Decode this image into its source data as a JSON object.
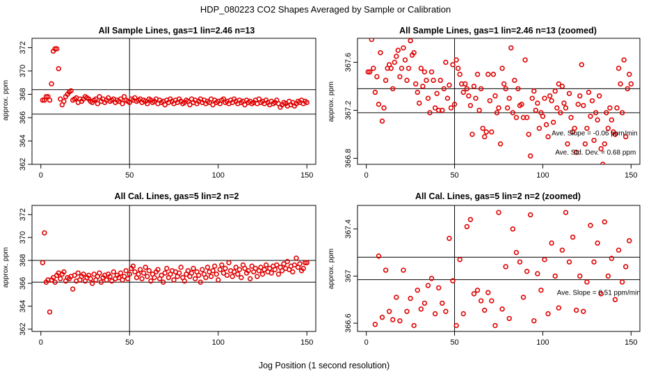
{
  "figure": {
    "title": "HDP_080223  CO2 Shapes Averaged by Sample or Calibration",
    "xlabel": "Jog Position (1 second resolution)"
  },
  "colors": {
    "points": "#e00000",
    "lines": "#000000"
  },
  "chart_data": [
    {
      "type": "scatter",
      "title": "All Sample Lines, gas=1 lin=2.46 n=13",
      "ylabel": "approx. ppm",
      "xlim": [
        -5,
        155
      ],
      "ylim": [
        362,
        372.8
      ],
      "xticks": [
        0,
        50,
        100,
        150
      ],
      "yticks": [
        362,
        364,
        366,
        368,
        370,
        372
      ],
      "vline": 50,
      "hlines": [
        366.3,
        368.4
      ],
      "annotations": [],
      "series": {
        "name": "sample lines",
        "x": [
          1,
          2,
          3,
          4,
          5,
          6,
          7,
          8,
          9,
          10,
          11,
          12,
          13,
          14,
          15,
          16,
          17,
          18,
          19,
          20,
          21,
          22,
          23,
          24,
          25,
          26,
          27,
          28,
          29,
          30,
          31,
          32,
          33,
          34,
          35,
          36,
          37,
          38,
          39,
          40,
          41,
          42,
          43,
          44,
          45,
          46,
          47,
          48,
          49,
          50,
          51,
          52,
          53,
          54,
          55,
          56,
          57,
          58,
          59,
          60,
          61,
          62,
          63,
          64,
          65,
          66,
          67,
          68,
          69,
          70,
          71,
          72,
          73,
          74,
          75,
          76,
          77,
          78,
          79,
          80,
          81,
          82,
          83,
          84,
          85,
          86,
          87,
          88,
          89,
          90,
          91,
          92,
          93,
          94,
          95,
          96,
          97,
          98,
          99,
          100,
          101,
          102,
          103,
          104,
          105,
          106,
          107,
          108,
          109,
          110,
          111,
          112,
          113,
          114,
          115,
          116,
          117,
          118,
          119,
          120,
          121,
          122,
          123,
          124,
          125,
          126,
          127,
          128,
          129,
          130,
          131,
          132,
          133,
          134,
          135,
          136,
          137,
          138,
          139,
          140,
          141,
          142,
          143,
          144,
          145,
          146,
          147,
          148,
          149,
          150
        ],
        "y": [
          367.5,
          367.5,
          367.8,
          367.8,
          367.5,
          368.9,
          371.7,
          371.9,
          371.9,
          370.2,
          367.6,
          367.1,
          367.4,
          367.8,
          368.0,
          368.2,
          368.3,
          367.5,
          367.6,
          367.7,
          367.3,
          367.6,
          367.4,
          367.6,
          367.8,
          367.7,
          367.6,
          367.4,
          367.3,
          367.5,
          367.6,
          367.2,
          367.8,
          367.4,
          367.6,
          367.3,
          367.5,
          367.7,
          367.4,
          367.5,
          367.6,
          367.3,
          367.5,
          367.4,
          367.6,
          367.2,
          367.8,
          367.5,
          367.4,
          367.3,
          367.6,
          367.5,
          367.7,
          367.4,
          367.5,
          367.6,
          367.3,
          367.5,
          367.4,
          367.2,
          367.6,
          367.5,
          367.3,
          367.4,
          367.6,
          367.2,
          367.5,
          367.3,
          367.4,
          367.1,
          367.5,
          367.3,
          367.6,
          367.4,
          367.2,
          367.5,
          367.3,
          367.6,
          367.4,
          367.2,
          367.3,
          367.5,
          367.4,
          367.1,
          367.6,
          367.3,
          367.5,
          367.2,
          367.4,
          367.6,
          367.3,
          367.5,
          367.2,
          367.4,
          367.3,
          367.6,
          367.1,
          367.5,
          367.3,
          367.4,
          367.2,
          367.5,
          367.6,
          367.3,
          367.4,
          367.2,
          367.5,
          367.3,
          367.6,
          367.4,
          367.2,
          367.5,
          367.3,
          367.4,
          367.1,
          367.5,
          367.3,
          367.4,
          367.2,
          367.3,
          367.5,
          367.2,
          367.6,
          367.3,
          367.4,
          367.2,
          367.5,
          367.3,
          367.1,
          367.4,
          367.2,
          367.3,
          367.5,
          367.2,
          366.9,
          367.1,
          367.3,
          367.2,
          367.0,
          367.4,
          367.1,
          367.3,
          367.0,
          367.2,
          367.4,
          367.3,
          367.5,
          367.2,
          367.4,
          367.3
        ]
      }
    },
    {
      "type": "scatter",
      "title": "All Sample Lines, gas=1 lin=2.46 n=13 (zoomed)",
      "ylabel": "approx. ppm",
      "xlim": [
        -5,
        155
      ],
      "ylim": [
        366.75,
        367.8
      ],
      "xticks": [
        0,
        50,
        100,
        150
      ],
      "yticks": [
        366.8,
        367.2,
        367.6
      ],
      "vline": 50,
      "hlines": [
        367.18,
        367.38
      ],
      "annotations": [
        "Ave. Slope =  -0.06  ppm/min",
        "Ave. Std. Dev. =  0.68  ppm"
      ],
      "series": {
        "name": "sample lines zoomed",
        "x": [
          1,
          2,
          3,
          4,
          5,
          6,
          7,
          8,
          9,
          10,
          11,
          12,
          13,
          14,
          15,
          16,
          17,
          18,
          19,
          20,
          21,
          22,
          23,
          24,
          25,
          26,
          27,
          28,
          29,
          30,
          31,
          32,
          33,
          34,
          35,
          36,
          37,
          38,
          39,
          40,
          41,
          42,
          43,
          44,
          45,
          46,
          47,
          48,
          49,
          50,
          51,
          52,
          53,
          54,
          55,
          56,
          57,
          58,
          59,
          60,
          61,
          62,
          63,
          64,
          65,
          66,
          67,
          68,
          69,
          70,
          71,
          72,
          73,
          74,
          75,
          76,
          77,
          78,
          79,
          80,
          81,
          82,
          83,
          84,
          85,
          86,
          87,
          88,
          89,
          90,
          91,
          92,
          93,
          94,
          95,
          96,
          97,
          98,
          99,
          100,
          101,
          102,
          103,
          104,
          105,
          106,
          107,
          108,
          109,
          110,
          111,
          112,
          113,
          114,
          115,
          116,
          117,
          118,
          119,
          120,
          121,
          122,
          123,
          124,
          125,
          126,
          127,
          128,
          129,
          130,
          131,
          132,
          133,
          134,
          135,
          136,
          137,
          138,
          139,
          140,
          141,
          142,
          143,
          144,
          145,
          146,
          147,
          148,
          149,
          150
        ],
        "y": [
          367.52,
          367.52,
          367.79,
          367.55,
          367.35,
          367.48,
          367.25,
          367.68,
          367.11,
          367.22,
          367.45,
          367.55,
          367.58,
          367.55,
          367.38,
          367.6,
          367.65,
          367.7,
          367.48,
          367.55,
          367.72,
          367.62,
          367.45,
          367.55,
          367.78,
          367.66,
          367.68,
          367.42,
          367.35,
          367.26,
          367.55,
          367.4,
          367.52,
          367.45,
          367.3,
          367.18,
          367.52,
          367.45,
          367.22,
          367.34,
          367.2,
          367.45,
          367.2,
          367.38,
          367.6,
          367.3,
          367.41,
          367.22,
          367.58,
          367.25,
          367.62,
          367.55,
          367.5,
          367.42,
          367.35,
          367.42,
          367.38,
          367.32,
          367.24,
          367.0,
          367.4,
          367.3,
          367.5,
          367.2,
          367.38,
          367.05,
          366.98,
          367.02,
          367.5,
          367.28,
          367.02,
          367.5,
          367.32,
          367.18,
          367.22,
          366.92,
          367.55,
          367.42,
          367.38,
          367.22,
          367.3,
          367.72,
          367.18,
          367.45,
          367.14,
          367.38,
          367.24,
          367.25,
          367.14,
          367.62,
          367.14,
          367.0,
          366.82,
          367.3,
          367.36,
          367.2,
          367.26,
          367.05,
          367.18,
          367.15,
          367.3,
          367.08,
          366.98,
          367.32,
          367.28,
          367.1,
          367.36,
          367.22,
          367.42,
          367.18,
          367.4,
          367.26,
          367.22,
          366.92,
          367.34,
          367.14,
          367.02,
          367.05,
          366.85,
          367.25,
          367.32,
          367.58,
          367.24,
          366.92,
          367.05,
          367.35,
          367.15,
          367.28,
          366.95,
          367.18,
          367.12,
          367.32,
          366.88,
          366.75,
          366.92,
          367.18,
          367.05,
          367.22,
          367.12,
          367.02,
          367.0,
          367.22,
          367.55,
          367.42,
          367.18,
          367.62,
          366.98,
          367.38,
          367.5,
          367.42
        ]
      }
    },
    {
      "type": "scatter",
      "title": "All Cal. Lines, gas=5 lin=2 n=2",
      "ylabel": "approx. ppm",
      "xlim": [
        -5,
        155
      ],
      "ylim": [
        361.8,
        372.8
      ],
      "xticks": [
        0,
        50,
        100,
        150
      ],
      "yticks": [
        362,
        364,
        366,
        368,
        370,
        372
      ],
      "vline": 50,
      "hlines": [
        366.1,
        368.0
      ],
      "annotations": [],
      "series": {
        "name": "cal lines",
        "x": [
          1,
          2,
          3,
          4,
          5,
          6,
          7,
          8,
          9,
          10,
          11,
          12,
          13,
          14,
          15,
          16,
          17,
          18,
          19,
          20,
          21,
          22,
          23,
          24,
          25,
          26,
          27,
          28,
          29,
          30,
          31,
          32,
          33,
          34,
          35,
          36,
          37,
          38,
          39,
          40,
          41,
          42,
          43,
          44,
          45,
          46,
          47,
          48,
          49,
          50,
          51,
          52,
          53,
          54,
          55,
          56,
          57,
          58,
          59,
          60,
          61,
          62,
          63,
          64,
          65,
          66,
          67,
          68,
          69,
          70,
          71,
          72,
          73,
          74,
          75,
          76,
          77,
          78,
          79,
          80,
          81,
          82,
          83,
          84,
          85,
          86,
          87,
          88,
          89,
          90,
          91,
          92,
          93,
          94,
          95,
          96,
          97,
          98,
          99,
          100,
          101,
          102,
          103,
          104,
          105,
          106,
          107,
          108,
          109,
          110,
          111,
          112,
          113,
          114,
          115,
          116,
          117,
          118,
          119,
          120,
          121,
          122,
          123,
          124,
          125,
          126,
          127,
          128,
          129,
          130,
          131,
          132,
          133,
          134,
          135,
          136,
          137,
          138,
          139,
          140,
          141,
          142,
          143,
          144,
          145,
          146,
          147,
          148,
          149,
          150
        ],
        "y": [
          367.8,
          370.4,
          366.1,
          366.3,
          363.5,
          366.3,
          366.5,
          366.1,
          366.7,
          366.9,
          366.4,
          366.8,
          367.0,
          366.2,
          366.5,
          366.4,
          366.6,
          365.5,
          366.7,
          366.2,
          366.9,
          366.3,
          366.6,
          366.8,
          366.2,
          366.5,
          366.7,
          366.4,
          366.0,
          366.8,
          366.3,
          366.6,
          366.9,
          366.1,
          366.5,
          366.7,
          366.3,
          366.8,
          366.6,
          366.2,
          367.0,
          366.4,
          366.7,
          366.5,
          366.9,
          366.3,
          366.6,
          367.1,
          366.4,
          366.8,
          367.3,
          367.5,
          367.0,
          366.5,
          366.8,
          367.2,
          366.4,
          366.9,
          367.4,
          366.6,
          367.1,
          366.2,
          366.8,
          366.5,
          367.0,
          367.2,
          366.4,
          366.7,
          366.1,
          366.9,
          367.3,
          366.5,
          366.8,
          367.1,
          366.3,
          367.0,
          366.6,
          366.9,
          367.4,
          366.5,
          366.2,
          366.8,
          367.1,
          366.6,
          366.9,
          367.3,
          366.4,
          367.0,
          366.7,
          366.1,
          367.2,
          366.8,
          366.5,
          367.4,
          367.0,
          366.6,
          367.1,
          367.5,
          366.8,
          366.3,
          367.2,
          367.6,
          366.9,
          367.3,
          366.7,
          367.8,
          367.1,
          366.6,
          367.0,
          367.4,
          366.8,
          367.2,
          366.5,
          367.6,
          367.3,
          366.9,
          367.1,
          366.4,
          367.5,
          367.0,
          367.3,
          366.6,
          367.1,
          367.4,
          366.8,
          367.2,
          367.6,
          367.0,
          367.3,
          366.9,
          367.5,
          367.2,
          367.6,
          366.8,
          367.4,
          367.1,
          367.7,
          367.3,
          367.9,
          367.2,
          367.5,
          367.0,
          367.6,
          368.2,
          367.4,
          367.7,
          367.1,
          367.3,
          367.8,
          367.8
        ]
      }
    },
    {
      "type": "scatter",
      "title": "All Cal. Lines, gas=5 lin=2 n=2 (zoomed)",
      "ylabel": "approx. ppm",
      "xlim": [
        -5,
        155
      ],
      "ylim": [
        366.53,
        367.6
      ],
      "xticks": [
        0,
        50,
        100,
        150
      ],
      "yticks": [
        366.6,
        367.0,
        367.4
      ],
      "vline": 50,
      "hlines": [
        366.97,
        367.16
      ],
      "annotations": [
        "Ave. Slope =  0.51  ppm/min"
      ],
      "series": {
        "name": "cal lines zoomed",
        "x": [
          5,
          7,
          9,
          11,
          13,
          15,
          17,
          19,
          21,
          23,
          25,
          27,
          29,
          31,
          33,
          35,
          37,
          39,
          41,
          43,
          45,
          47,
          49,
          51,
          53,
          55,
          57,
          59,
          61,
          63,
          65,
          67,
          69,
          71,
          73,
          75,
          77,
          79,
          81,
          83,
          85,
          87,
          89,
          91,
          93,
          95,
          97,
          99,
          101,
          103,
          105,
          107,
          109,
          111,
          113,
          115,
          117,
          119,
          121,
          123,
          125,
          127,
          129,
          131,
          133,
          135,
          137,
          139,
          141,
          143,
          145,
          147,
          149
        ],
        "y": [
          366.59,
          367.17,
          366.65,
          367.05,
          366.7,
          366.63,
          366.82,
          366.62,
          367.05,
          366.7,
          366.81,
          366.58,
          366.88,
          366.72,
          366.77,
          366.92,
          366.98,
          366.68,
          366.9,
          366.77,
          366.7,
          367.32,
          366.96,
          366.58,
          367.14,
          366.68,
          367.42,
          367.48,
          366.85,
          366.88,
          366.79,
          366.71,
          366.86,
          366.79,
          366.58,
          367.54,
          366.72,
          367.08,
          366.64,
          367.4,
          367.2,
          367.12,
          366.82,
          367.04,
          367.52,
          366.62,
          367.02,
          366.88,
          367.14,
          366.68,
          367.28,
          367.0,
          366.73,
          367.22,
          367.54,
          367.12,
          367.33,
          366.71,
          367.0,
          366.7,
          366.95,
          367.43,
          367.12,
          367.28,
          366.85,
          367.46,
          367.0,
          367.15,
          366.8,
          367.22,
          366.95,
          367.08,
          367.3
        ]
      }
    }
  ]
}
